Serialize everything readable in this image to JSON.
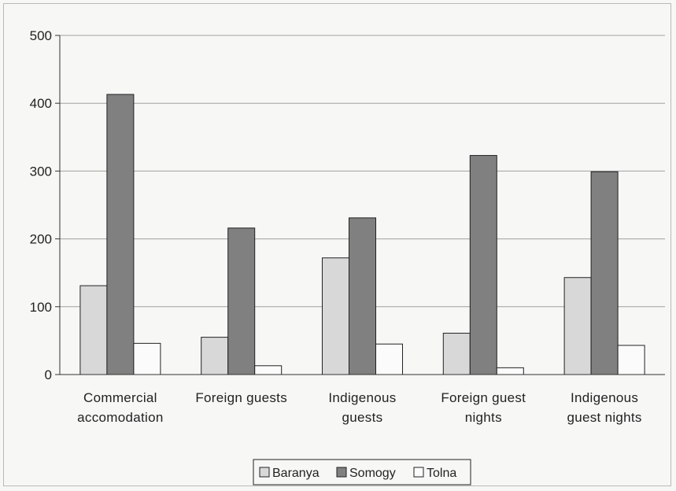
{
  "chart_data": {
    "type": "bar",
    "title": "",
    "xlabel": "",
    "ylabel": "",
    "ylim": [
      0,
      500
    ],
    "yticks": [
      0,
      100,
      200,
      300,
      400,
      500
    ],
    "grid": true,
    "legend_position": "bottom",
    "categories": [
      [
        "Commercial",
        "accomodation"
      ],
      [
        "Foreign guests"
      ],
      [
        "Indigenous",
        "guests"
      ],
      [
        "Foreign guest",
        "nights"
      ],
      [
        "Indigenous",
        "guest nights"
      ]
    ],
    "series": [
      {
        "name": "Baranya",
        "color": "#d8d8d8",
        "values": [
          131,
          55,
          172,
          61,
          143
        ]
      },
      {
        "name": "Somogy",
        "color": "#808080",
        "values": [
          413,
          216,
          231,
          323,
          299
        ]
      },
      {
        "name": "Tolna",
        "color": "#fbfbfb",
        "values": [
          46,
          13,
          45,
          10,
          43
        ]
      }
    ]
  }
}
